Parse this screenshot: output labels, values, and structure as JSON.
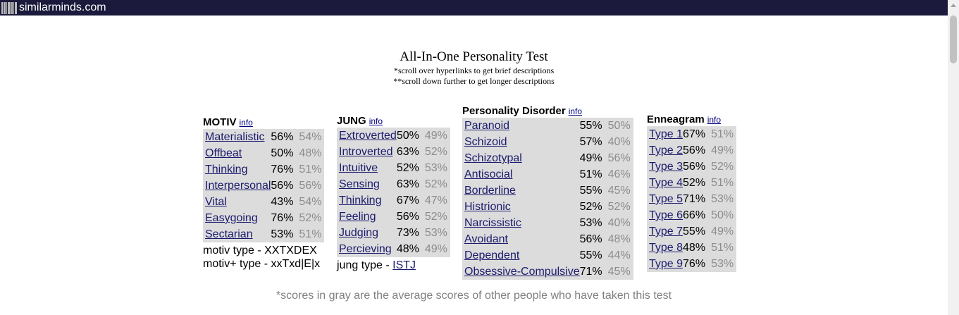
{
  "site": "similarminds.com",
  "title": "All-In-One Personality Test",
  "subtitle1": "*scroll over hyperlinks to get brief descriptions",
  "subtitle2": "**scroll down further to get longer descriptions",
  "motiv": {
    "heading": "MOTIV",
    "info": "info",
    "rows": [
      {
        "name": "Materialistic",
        "score": "56%",
        "avg": "54%"
      },
      {
        "name": "Offbeat",
        "score": "50%",
        "avg": "48%"
      },
      {
        "name": "Thinking",
        "score": "76%",
        "avg": "51%"
      },
      {
        "name": "Interpersonal",
        "score": "56%",
        "avg": "56%"
      },
      {
        "name": "Vital",
        "score": "43%",
        "avg": "54%"
      },
      {
        "name": "Easygoing",
        "score": "76%",
        "avg": "52%"
      },
      {
        "name": "Sectarian",
        "score": "53%",
        "avg": "51%"
      }
    ],
    "type_line1": "motiv type - XXTXDEX",
    "type_line2": "motiv+ type - xxTxd|E|x"
  },
  "jung": {
    "heading": "JUNG",
    "info": "info",
    "rows": [
      {
        "name": "Extroverted",
        "score": "50%",
        "avg": "49%"
      },
      {
        "name": "Introverted",
        "score": "63%",
        "avg": "52%"
      },
      {
        "name": "Intuitive",
        "score": "52%",
        "avg": "53%"
      },
      {
        "name": "Sensing",
        "score": "63%",
        "avg": "52%"
      },
      {
        "name": "Thinking",
        "score": "67%",
        "avg": "47%"
      },
      {
        "name": "Feeling",
        "score": "56%",
        "avg": "52%"
      },
      {
        "name": "Judging",
        "score": "73%",
        "avg": "53%"
      },
      {
        "name": "Percieving",
        "score": "48%",
        "avg": "49%"
      }
    ],
    "type_prefix": "jung type - ",
    "type_value": "ISTJ"
  },
  "pd": {
    "heading": "Personality Disorder",
    "info": "info",
    "rows": [
      {
        "name": "Paranoid",
        "score": "55%",
        "avg": "50%"
      },
      {
        "name": "Schizoid",
        "score": "57%",
        "avg": "40%"
      },
      {
        "name": "Schizotypal",
        "score": "49%",
        "avg": "56%"
      },
      {
        "name": "Antisocial",
        "score": "51%",
        "avg": "46%"
      },
      {
        "name": "Borderline",
        "score": "55%",
        "avg": "45%"
      },
      {
        "name": "Histrionic",
        "score": "52%",
        "avg": "52%"
      },
      {
        "name": "Narcissistic",
        "score": "53%",
        "avg": "40%"
      },
      {
        "name": "Avoidant",
        "score": "56%",
        "avg": "48%"
      },
      {
        "name": "Dependent",
        "score": "55%",
        "avg": "44%"
      },
      {
        "name": "Obsessive-Compulsive",
        "score": "71%",
        "avg": "45%"
      }
    ]
  },
  "enneagram": {
    "heading": "Enneagram",
    "info": "info",
    "rows": [
      {
        "name": "Type 1",
        "score": "67%",
        "avg": "51%"
      },
      {
        "name": "Type 2",
        "score": "56%",
        "avg": "49%"
      },
      {
        "name": "Type 3",
        "score": "56%",
        "avg": "52%"
      },
      {
        "name": "Type 4",
        "score": "52%",
        "avg": "51%"
      },
      {
        "name": "Type 5",
        "score": "71%",
        "avg": "53%"
      },
      {
        "name": "Type 6",
        "score": "66%",
        "avg": "50%"
      },
      {
        "name": "Type 7",
        "score": "55%",
        "avg": "49%"
      },
      {
        "name": "Type 8",
        "score": "48%",
        "avg": "51%"
      },
      {
        "name": "Type 9",
        "score": "76%",
        "avg": "53%"
      }
    ]
  },
  "footer": "*scores in gray are the average scores of other people who have taken this test",
  "colors": {
    "topbar": "#1c1a3c",
    "table_bg": "#dcdcdc",
    "link": "#1a1a6e",
    "avg_text": "#8c8c8c"
  }
}
